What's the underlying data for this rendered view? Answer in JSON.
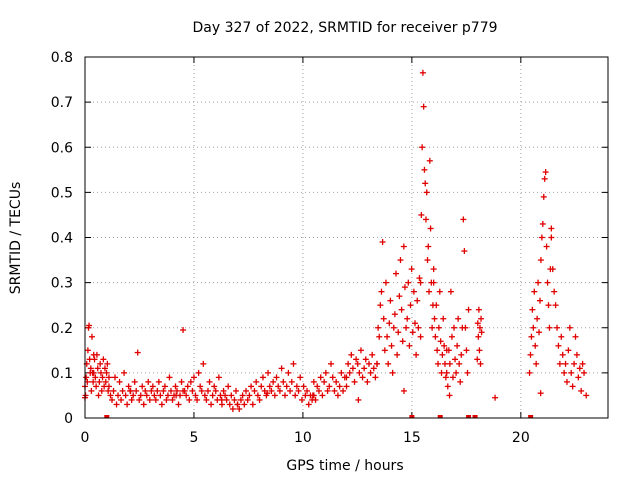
{
  "chart_data": {
    "type": "scatter",
    "title": "Day 327 of 2022, SRMTID for receiver p779",
    "xlabel": "GPS time / hours",
    "ylabel": "SRMTID / TECUs",
    "xlim": [
      0,
      24
    ],
    "ylim": [
      0,
      0.8
    ],
    "xticks": [
      0,
      5,
      10,
      15,
      20
    ],
    "xtick_labels": [
      "0",
      "5",
      "10",
      "15",
      "20"
    ],
    "yticks": [
      0,
      0.1,
      0.2,
      0.3,
      0.4,
      0.5,
      0.6,
      0.7,
      0.8
    ],
    "ytick_labels": [
      "0",
      "0.1",
      "0.2",
      "0.3",
      "0.4",
      "0.5",
      "0.6",
      "0.7",
      "0.8"
    ],
    "grid": true,
    "marker": "+",
    "color": "#e00000",
    "series": [
      {
        "name": "SRMTID",
        "segments": [
          {
            "x_start": 0.0,
            "x_end": 0.4,
            "y": [
              0.07,
              0.05,
              0.09,
              0.12,
              0.08,
              0.15,
              0.2,
              0.205,
              0.13,
              0.1,
              0.11,
              0.06,
              0.18,
              0.1,
              0.08,
              0.14
            ]
          },
          {
            "x_start": 0.4,
            "x_end": 1.1,
            "y": [
              0.1,
              0.13,
              0.09,
              0.07,
              0.14,
              0.11,
              0.05,
              0.08,
              0.12,
              0.1,
              0.06,
              0.09,
              0.13,
              0.07,
              0.11,
              0.08,
              0.1,
              0.12,
              0.06,
              0.09
            ]
          },
          {
            "x_start": 1.1,
            "x_end": 4.5,
            "y": [
              0.07,
              0.05,
              0.04,
              0.06,
              0.09,
              0.03,
              0.05,
              0.08,
              0.04,
              0.06,
              0.1,
              0.05,
              0.03,
              0.07,
              0.06,
              0.04,
              0.05,
              0.08,
              0.06,
              0.145,
              0.04,
              0.05,
              0.07,
              0.03,
              0.06,
              0.05,
              0.08,
              0.04,
              0.06,
              0.07,
              0.05,
              0.04,
              0.06,
              0.08,
              0.05,
              0.03,
              0.06,
              0.07,
              0.04,
              0.05,
              0.09,
              0.06,
              0.04,
              0.05,
              0.07,
              0.06,
              0.03,
              0.05,
              0.08,
              0.06
            ]
          },
          {
            "x_start": 4.5,
            "x_end": 7.0,
            "y": [
              0.195,
              0.06,
              0.05,
              0.07,
              0.04,
              0.08,
              0.06,
              0.09,
              0.05,
              0.04,
              0.1,
              0.07,
              0.06,
              0.12,
              0.05,
              0.04,
              0.06,
              0.08,
              0.03,
              0.05,
              0.07,
              0.06,
              0.04,
              0.09,
              0.05,
              0.03,
              0.06,
              0.05,
              0.04,
              0.07,
              0.03,
              0.05,
              0.02,
              0.04,
              0.06,
              0.03
            ]
          },
          {
            "x_start": 7.0,
            "x_end": 10.5,
            "y": [
              0.03,
              0.02,
              0.04,
              0.05,
              0.03,
              0.06,
              0.04,
              0.05,
              0.07,
              0.03,
              0.06,
              0.08,
              0.05,
              0.04,
              0.07,
              0.09,
              0.06,
              0.05,
              0.1,
              0.07,
              0.06,
              0.08,
              0.05,
              0.09,
              0.07,
              0.06,
              0.11,
              0.08,
              0.05,
              0.07,
              0.1,
              0.06,
              0.08,
              0.12,
              0.05,
              0.07,
              0.06,
              0.09,
              0.04,
              0.07,
              0.05,
              0.06,
              0.03,
              0.05,
              0.04,
              0.08
            ]
          },
          {
            "x_start": 10.5,
            "x_end": 12.0,
            "y": [
              0.05,
              0.04,
              0.07,
              0.06,
              0.09,
              0.05,
              0.08,
              0.1,
              0.06,
              0.07,
              0.12,
              0.09,
              0.06,
              0.08,
              0.05,
              0.07,
              0.1,
              0.06,
              0.09,
              0.07
            ]
          },
          {
            "x_start": 12.0,
            "x_end": 13.4,
            "y": [
              0.09,
              0.12,
              0.1,
              0.14,
              0.11,
              0.08,
              0.13,
              0.12,
              0.1,
              0.15,
              0.09,
              0.11,
              0.13,
              0.08,
              0.12,
              0.1,
              0.14,
              0.11,
              0.09,
              0.12
            ]
          },
          {
            "x_start": 13.4,
            "x_end": 15.4,
            "y": [
              0.12,
              0.2,
              0.18,
              0.25,
              0.28,
              0.39,
              0.22,
              0.15,
              0.3,
              0.18,
              0.12,
              0.21,
              0.26,
              0.16,
              0.1,
              0.2,
              0.23,
              0.32,
              0.14,
              0.19,
              0.27,
              0.35,
              0.24,
              0.17,
              0.38,
              0.29,
              0.2,
              0.22,
              0.3,
              0.16,
              0.25,
              0.33,
              0.19,
              0.28,
              0.21,
              0.14,
              0.26,
              0.2,
              0.31,
              0.18
            ]
          },
          {
            "x_start": 15.4,
            "x_end": 16.0,
            "y": [
              0.3,
              0.45,
              0.6,
              0.765,
              0.69,
              0.55,
              0.52,
              0.44,
              0.5,
              0.35,
              0.38,
              0.28,
              0.57,
              0.42,
              0.3,
              0.2,
              0.25,
              0.33
            ]
          },
          {
            "x_start": 16.0,
            "x_end": 16.6,
            "y": [
              0.3,
              0.22,
              0.18,
              0.25,
              0.15,
              0.12,
              0.2,
              0.28,
              0.17,
              0.1,
              0.14,
              0.22,
              0.16,
              0.12,
              0.09,
              0.15
            ]
          },
          {
            "x_start": 16.6,
            "x_end": 17.6,
            "y": [
              0.1,
              0.07,
              0.15,
              0.12,
              0.28,
              0.18,
              0.09,
              0.2,
              0.13,
              0.1,
              0.16,
              0.22,
              0.12,
              0.08,
              0.14,
              0.2,
              0.44,
              0.37,
              0.2,
              0.15,
              0.1,
              0.24
            ]
          },
          {
            "x_start": 18.0,
            "x_end": 18.2,
            "y": [
              0.13,
              0.21,
              0.18,
              0.24,
              0.15,
              0.2,
              0.12,
              0.22,
              0.19
            ]
          },
          {
            "x_start": 20.4,
            "x_end": 21.4,
            "y": [
              0.1,
              0.14,
              0.18,
              0.24,
              0.2,
              0.28,
              0.16,
              0.12,
              0.22,
              0.3,
              0.19,
              0.26,
              0.35,
              0.4,
              0.43,
              0.49,
              0.53,
              0.545,
              0.38,
              0.3,
              0.25,
              0.2,
              0.33,
              0.42
            ]
          },
          {
            "x_start": 21.4,
            "x_end": 22.9,
            "y": [
              0.4,
              0.33,
              0.28,
              0.25,
              0.2,
              0.16,
              0.12,
              0.18,
              0.14,
              0.1,
              0.12,
              0.08,
              0.15,
              0.2,
              0.1,
              0.07,
              0.12,
              0.18,
              0.14,
              0.09,
              0.11,
              0.06,
              0.12,
              0.1
            ]
          },
          {
            "x_start": 0.0,
            "x_end": 23.0,
            "y": [
              0.045,
              0.06,
              0.05,
              0.04,
              0.055,
              0.05,
              0.04,
              0.06,
              0.05,
              0.045,
              0.055,
              0.05
            ]
          }
        ],
        "baseline_zero_x": [
          1.0,
          15.0,
          16.3,
          17.6,
          17.9,
          20.45
        ]
      }
    ]
  }
}
